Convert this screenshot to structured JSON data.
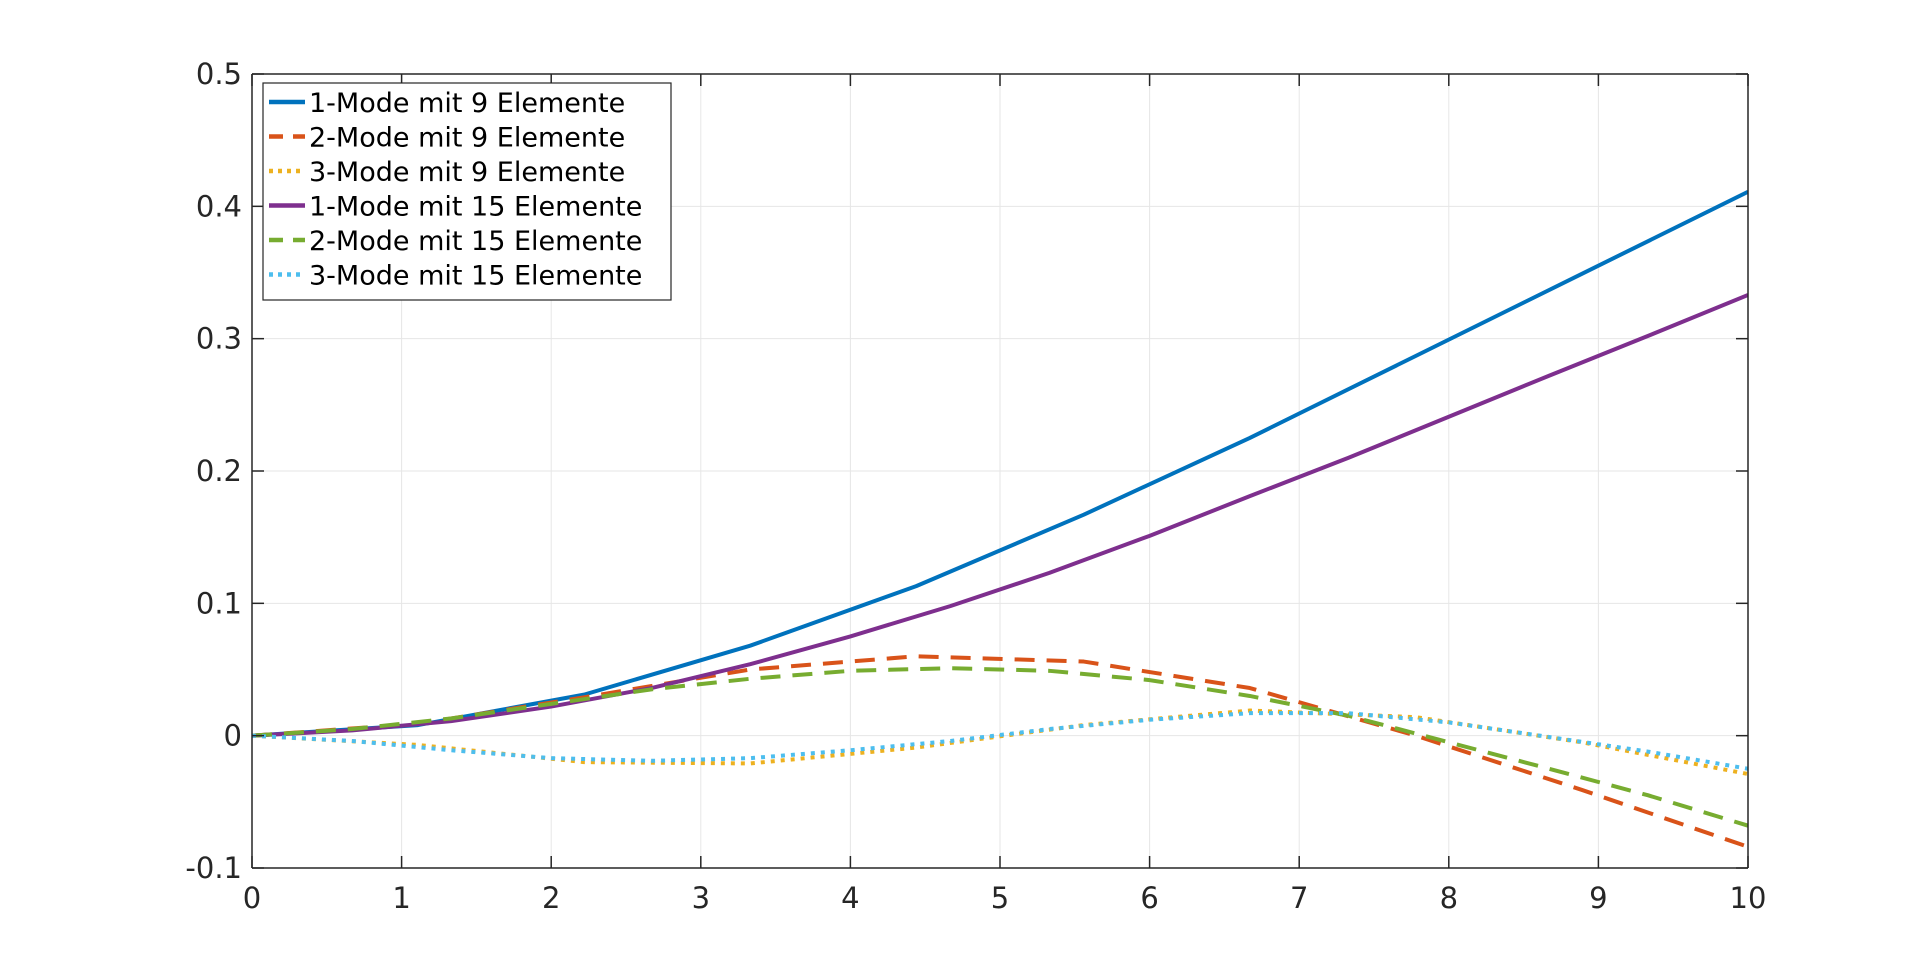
{
  "chart_data": {
    "type": "line",
    "title": "",
    "xlabel": "",
    "ylabel": "",
    "xlim": [
      0,
      10
    ],
    "ylim": [
      -0.1,
      0.5
    ],
    "xticks": [
      0,
      1,
      2,
      3,
      4,
      5,
      6,
      7,
      8,
      9,
      10
    ],
    "yticks": [
      -0.1,
      0,
      0.1,
      0.2,
      0.3,
      0.4,
      0.5
    ],
    "xtick_labels": [
      "0",
      "1",
      "2",
      "3",
      "4",
      "5",
      "6",
      "7",
      "8",
      "9",
      "10"
    ],
    "ytick_labels": [
      "-0.1",
      "0",
      "0.1",
      "0.2",
      "0.3",
      "0.4",
      "0.5"
    ],
    "grid": true,
    "legend_position": "top-left",
    "series": [
      {
        "name": "1-Mode mit 9 Elemente",
        "color": "#0072BD",
        "style": "solid",
        "x": [
          0,
          1.11,
          2.22,
          3.33,
          4.44,
          5.56,
          6.67,
          7.78,
          8.89,
          10
        ],
        "y": [
          0,
          0.008,
          0.031,
          0.068,
          0.113,
          0.167,
          0.225,
          0.287,
          0.349,
          0.411
        ]
      },
      {
        "name": "2-Mode mit 9 Elemente",
        "color": "#D95319",
        "style": "dashed",
        "x": [
          0,
          1.11,
          2.22,
          3.33,
          4.44,
          5.56,
          6.67,
          7.78,
          8.89,
          10
        ],
        "y": [
          0,
          0.009,
          0.029,
          0.05,
          0.06,
          0.056,
          0.036,
          0.0,
          -0.041,
          -0.084
        ]
      },
      {
        "name": "3-Mode mit 9 Elemente",
        "color": "#EDB120",
        "style": "dotted",
        "x": [
          0,
          1.11,
          2.22,
          3.33,
          4.44,
          5.56,
          6.67,
          7.78,
          8.89,
          10
        ],
        "y": [
          0,
          -0.007,
          -0.02,
          -0.021,
          -0.009,
          0.008,
          0.019,
          0.014,
          -0.005,
          -0.029
        ]
      },
      {
        "name": "1-Mode mit 15 Elemente",
        "color": "#7E2F8E",
        "style": "solid",
        "x": [
          0,
          0.67,
          1.33,
          2,
          2.67,
          3.33,
          4,
          4.67,
          5.33,
          6,
          6.67,
          7.33,
          8,
          8.67,
          9.33,
          10
        ],
        "y": [
          0,
          0.004,
          0.011,
          0.022,
          0.036,
          0.054,
          0.075,
          0.098,
          0.123,
          0.151,
          0.181,
          0.21,
          0.241,
          0.272,
          0.302,
          0.333
        ]
      },
      {
        "name": "2-Mode mit 15 Elemente",
        "color": "#77AC30",
        "style": "dashed",
        "x": [
          0,
          0.67,
          1.33,
          2,
          2.67,
          3.33,
          4,
          4.67,
          5.33,
          6,
          6.67,
          7.33,
          8,
          8.67,
          9.33,
          10
        ],
        "y": [
          0,
          0.005,
          0.013,
          0.024,
          0.035,
          0.043,
          0.049,
          0.051,
          0.049,
          0.042,
          0.03,
          0.015,
          -0.005,
          -0.025,
          -0.045,
          -0.068
        ]
      },
      {
        "name": "3-Mode mit 15 Elemente",
        "color": "#4DBEEE",
        "style": "dotted",
        "x": [
          0,
          0.67,
          1.33,
          2,
          2.67,
          3.33,
          4,
          4.67,
          5.33,
          6,
          6.67,
          7.33,
          8,
          8.67,
          9.33,
          10
        ],
        "y": [
          0,
          -0.004,
          -0.011,
          -0.017,
          -0.019,
          -0.017,
          -0.011,
          -0.004,
          0.005,
          0.012,
          0.017,
          0.017,
          0.01,
          -0.001,
          -0.012,
          -0.025
        ]
      }
    ]
  }
}
